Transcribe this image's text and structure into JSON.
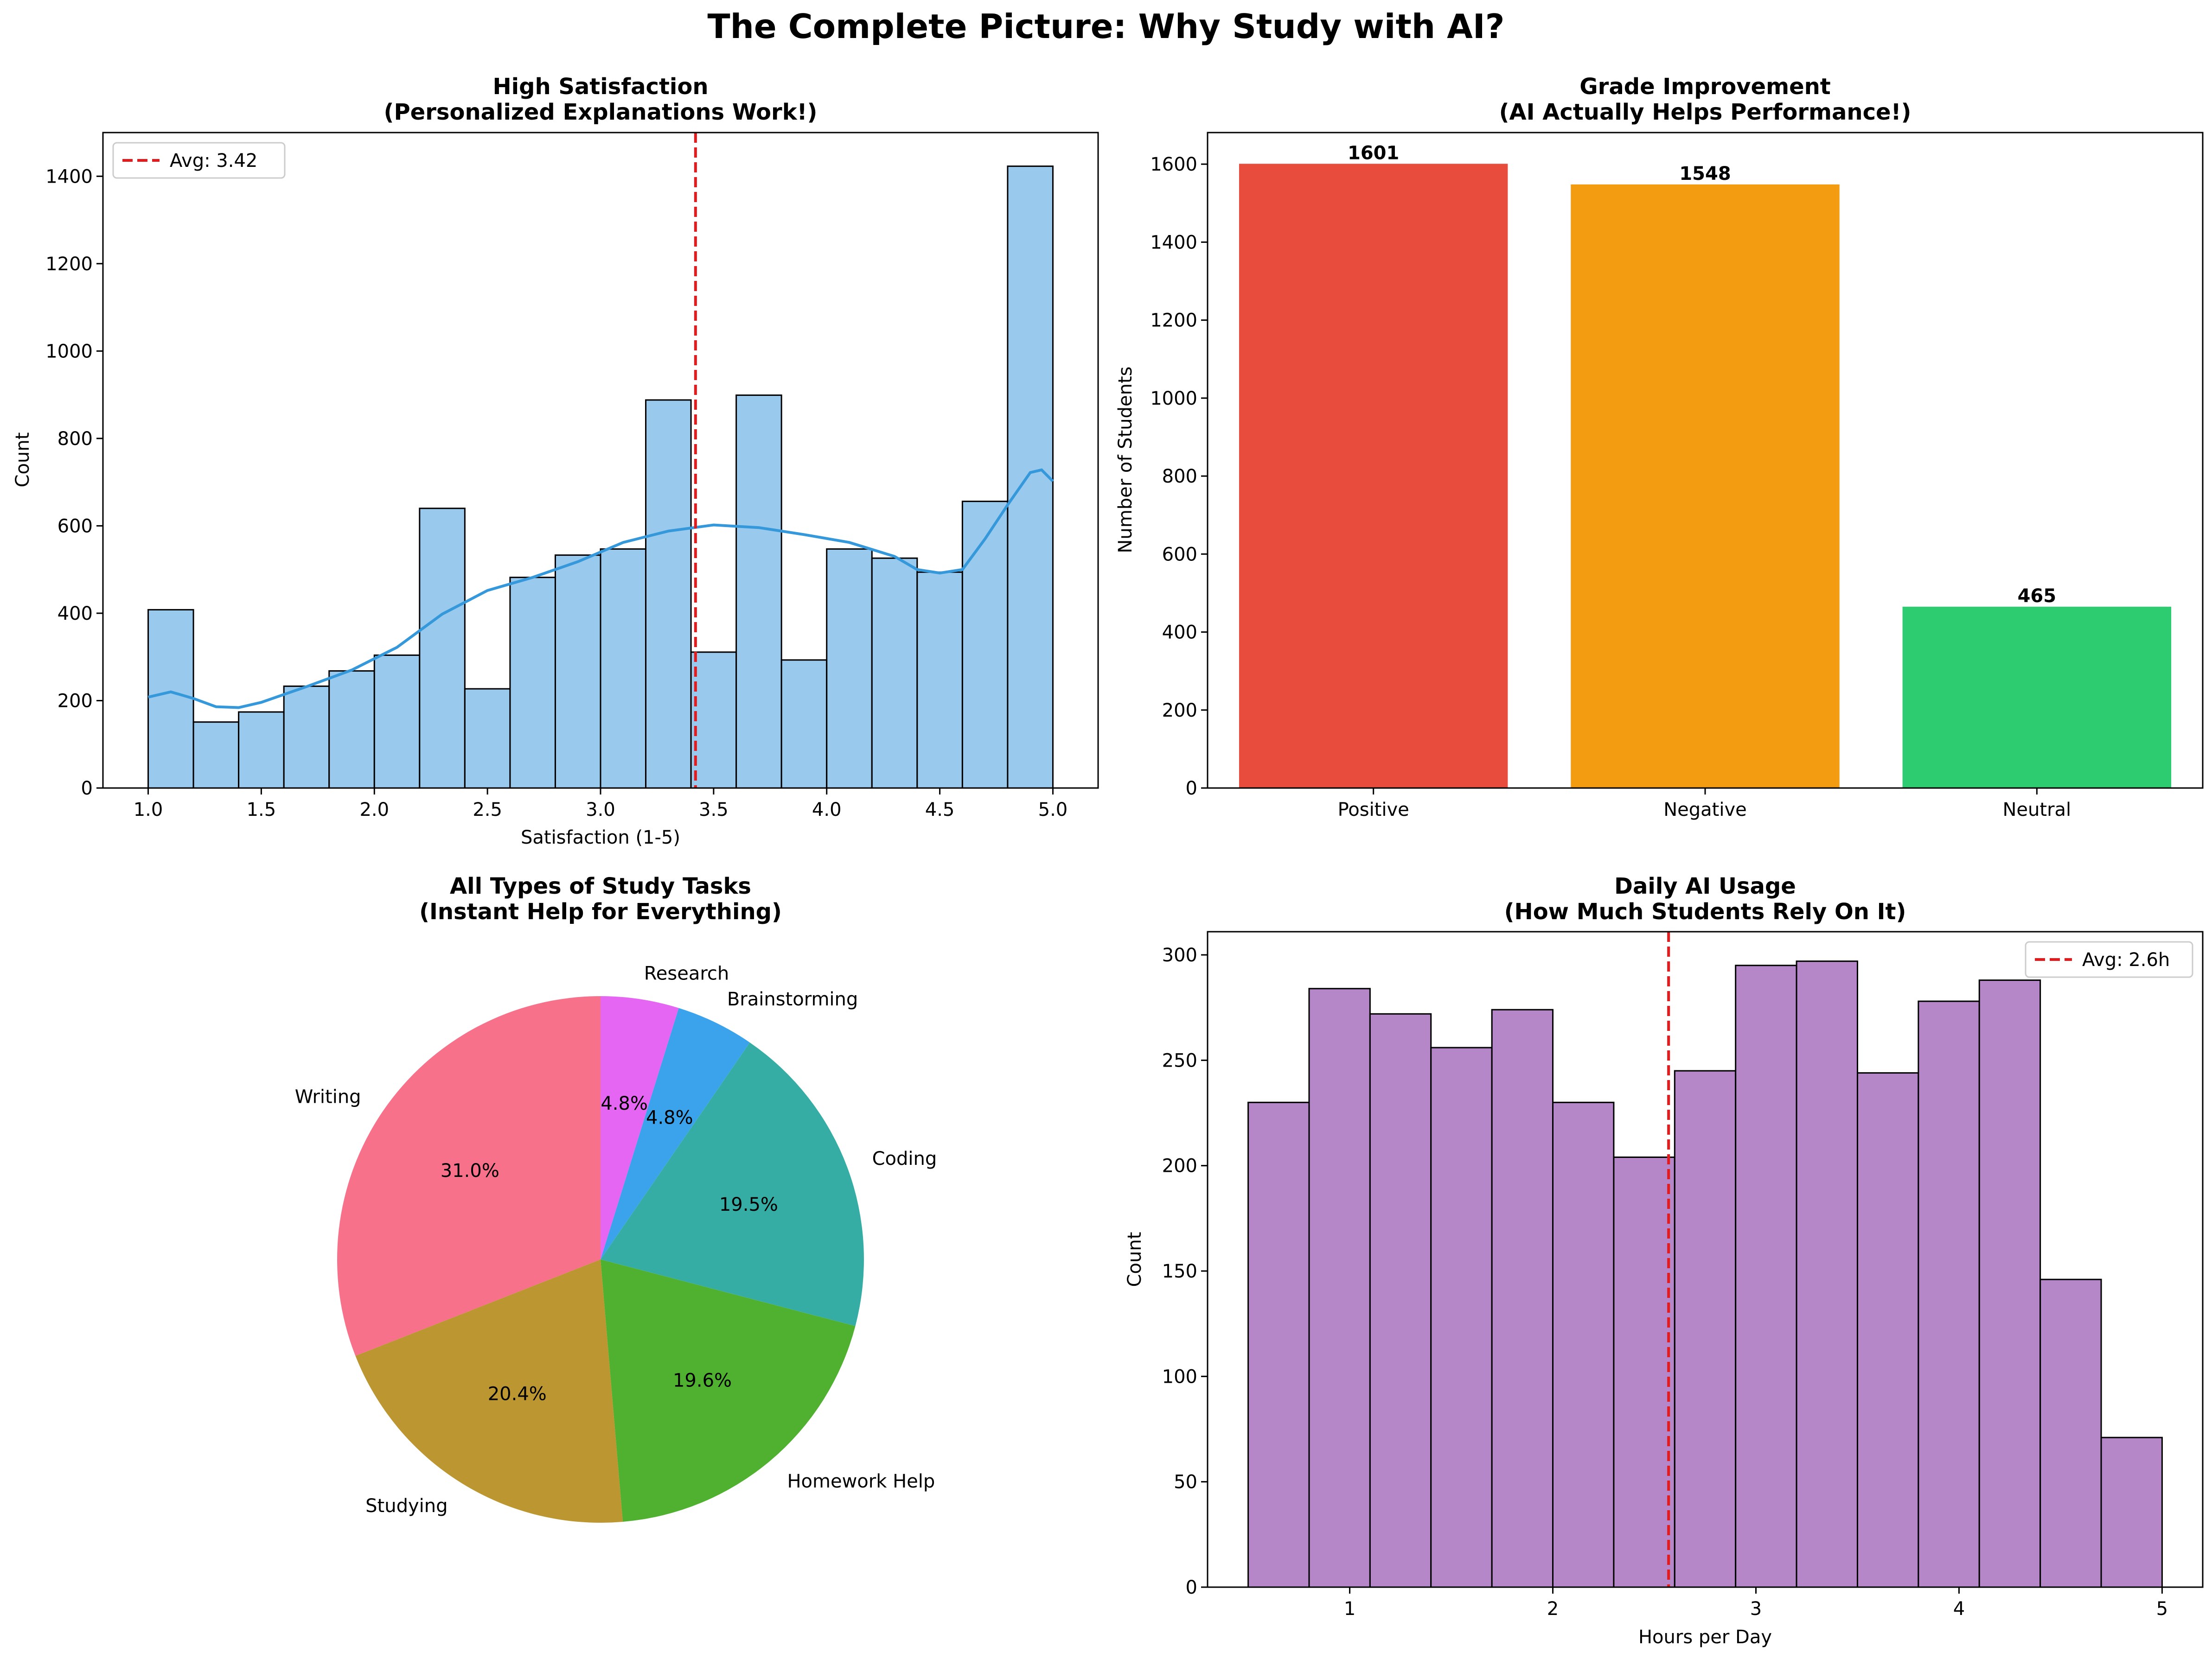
{
  "figure_title": "The Complete Picture: Why Study with AI?",
  "colors": {
    "hist1": "#99c9ec",
    "kde": "#3498db",
    "avg_line": "#e41a1c",
    "bar_positive": "#e74c3c",
    "bar_negative": "#f39c12",
    "bar_neutral": "#2ecc71",
    "hist2": "#b586c8",
    "pie": [
      "#f7718a",
      "#bb9631",
      "#50b131",
      "#36ada4",
      "#3ba3ec",
      "#e566f2"
    ]
  },
  "chart_data": [
    {
      "type": "bar",
      "subtype": "histogram",
      "title": "High Satisfaction",
      "subtitle": "(Personalized Explanations Work!)",
      "xlabel": "Satisfaction (1-5)",
      "ylabel": "Count",
      "xlim": [
        0.8,
        5.2
      ],
      "ylim": [
        0,
        1500
      ],
      "xticks": [
        "1.0",
        "1.5",
        "2.0",
        "2.5",
        "3.0",
        "3.5",
        "4.0",
        "4.5",
        "5.0"
      ],
      "yticks": [
        "0",
        "200",
        "400",
        "600",
        "800",
        "1000",
        "1200",
        "1400"
      ],
      "bins": [
        1.0,
        1.2,
        1.4,
        1.6,
        1.8,
        2.0,
        2.2,
        2.4,
        2.6,
        2.8,
        3.0,
        3.2,
        3.4,
        3.6,
        3.8,
        4.0,
        4.2,
        4.4,
        4.6,
        4.8,
        5.0
      ],
      "counts": [
        408,
        151,
        174,
        233,
        268,
        304,
        640,
        227,
        482,
        533,
        547,
        888,
        311,
        899,
        293,
        547,
        526,
        494,
        656,
        1423
      ],
      "kde": [
        [
          1.0,
          208
        ],
        [
          1.1,
          220
        ],
        [
          1.2,
          205
        ],
        [
          1.3,
          186
        ],
        [
          1.4,
          184
        ],
        [
          1.5,
          196
        ],
        [
          1.7,
          232
        ],
        [
          1.9,
          270
        ],
        [
          2.1,
          322
        ],
        [
          2.3,
          398
        ],
        [
          2.5,
          452
        ],
        [
          2.7,
          482
        ],
        [
          2.9,
          518
        ],
        [
          3.1,
          562
        ],
        [
          3.3,
          588
        ],
        [
          3.5,
          602
        ],
        [
          3.7,
          596
        ],
        [
          3.9,
          580
        ],
        [
          4.1,
          562
        ],
        [
          4.3,
          530
        ],
        [
          4.4,
          500
        ],
        [
          4.5,
          492
        ],
        [
          4.6,
          500
        ],
        [
          4.7,
          570
        ],
        [
          4.8,
          648
        ],
        [
          4.9,
          722
        ],
        [
          4.95,
          728
        ],
        [
          5.0,
          702
        ]
      ],
      "avg": 3.42,
      "legend": "Avg: 3.42",
      "legend_position": "top-left"
    },
    {
      "type": "bar",
      "title": "Grade Improvement",
      "subtitle": "(AI Actually Helps Performance!)",
      "xlabel": "",
      "ylabel": "Number of Students",
      "categories": [
        "Positive",
        "Negative",
        "Neutral"
      ],
      "values": [
        1601,
        1548,
        465
      ],
      "labels": [
        "1601",
        "1548",
        "465"
      ],
      "ylim": [
        0,
        1681
      ],
      "yticks": [
        "0",
        "200",
        "400",
        "600",
        "800",
        "1000",
        "1200",
        "1400",
        "1600"
      ]
    },
    {
      "type": "pie",
      "title": "All Types of Study Tasks",
      "subtitle": "(Instant Help for Everything)",
      "labels": [
        "Writing",
        "Studying",
        "Homework Help",
        "Coding",
        "Brainstorming",
        "Research"
      ],
      "values": [
        31.0,
        20.4,
        19.6,
        19.5,
        4.8,
        4.8
      ],
      "pct_labels": [
        "31.0%",
        "20.4%",
        "19.6%",
        "19.5%",
        "4.8%",
        "4.8%"
      ],
      "start_angle": 90
    },
    {
      "type": "bar",
      "subtype": "histogram",
      "title": "Daily AI Usage",
      "subtitle": "(How Much Students Rely On It)",
      "xlabel": "Hours per Day",
      "ylabel": "Count",
      "xlim": [
        0.3,
        5.2
      ],
      "ylim": [
        0,
        311
      ],
      "xticks": [
        "1",
        "2",
        "3",
        "4",
        "5"
      ],
      "yticks": [
        "0",
        "50",
        "100",
        "150",
        "200",
        "250",
        "300"
      ],
      "bins": [
        0.5,
        0.8,
        1.1,
        1.4,
        1.7,
        2.0,
        2.3,
        2.6,
        2.9,
        3.2,
        3.5,
        3.8,
        4.1,
        4.4,
        4.7,
        5.0
      ],
      "counts": [
        230,
        284,
        272,
        256,
        274,
        230,
        204,
        245,
        295,
        297,
        244,
        278,
        288,
        146,
        71
      ],
      "avg": 2.57,
      "legend": "Avg: 2.6h",
      "legend_position": "top-right"
    }
  ]
}
